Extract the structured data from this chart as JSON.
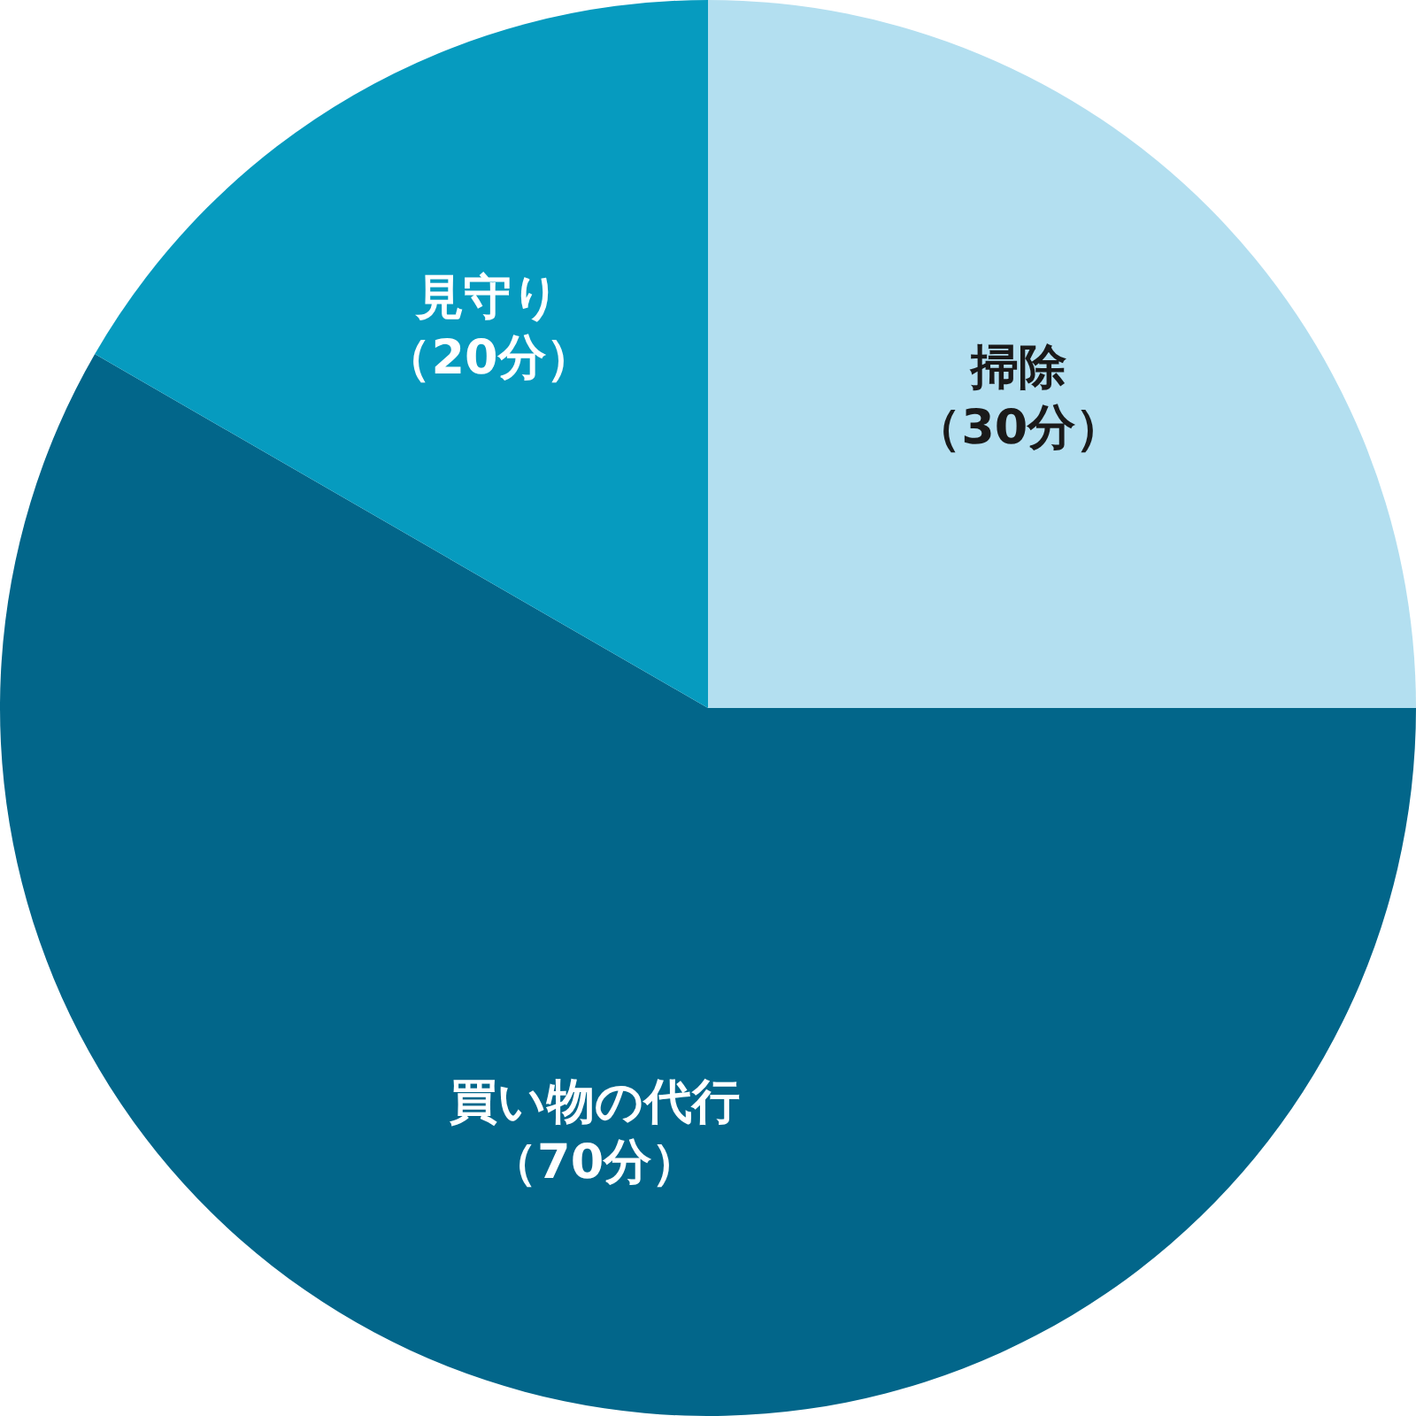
{
  "chart_data": {
    "type": "pie",
    "categories": [
      "掃除",
      "買い物の代行",
      "見守り"
    ],
    "values": [
      30,
      70,
      20
    ],
    "colors": [
      "#b3dff0",
      "#02668a",
      "#069bbf"
    ],
    "value_labels": [
      "（30分）",
      "（70分）",
      "（20分）"
    ],
    "legend": false
  }
}
